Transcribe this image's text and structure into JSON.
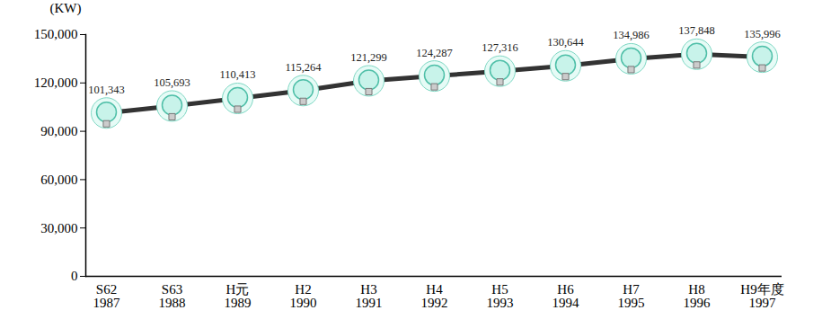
{
  "chart_data": {
    "type": "line",
    "y_label": "(KW)",
    "categories": [
      "S62\n1987",
      "S63\n1988",
      "H元\n1989",
      "H2\n1990",
      "H3\n1991",
      "H4\n1992",
      "H5\n1993",
      "H6\n1994",
      "H7\n1995",
      "H8\n1996",
      "H9年度\n1997"
    ],
    "values": [
      101343,
      105693,
      110413,
      115264,
      121299,
      124287,
      127316,
      130644,
      134986,
      137848,
      135996
    ],
    "value_labels": [
      "101,343",
      "105,693",
      "110,413",
      "115,264",
      "121,299",
      "124,287",
      "127,316",
      "130,644",
      "134,986",
      "137,848",
      "135,996"
    ],
    "data_labels": true,
    "color": "#333333",
    "marker": "bulb",
    "ylim": [
      0,
      150000
    ],
    "yticks": [
      0,
      {
        "value": 30000,
        "label": "30,000"
      },
      {
        "value": 60000,
        "label": "60,000"
      },
      {
        "value": 90000,
        "label": "90,000"
      },
      {
        "value": 120000,
        "label": "120,000"
      },
      {
        "value": 150000,
        "label": "150,000"
      }
    ],
    "grid": false
  }
}
